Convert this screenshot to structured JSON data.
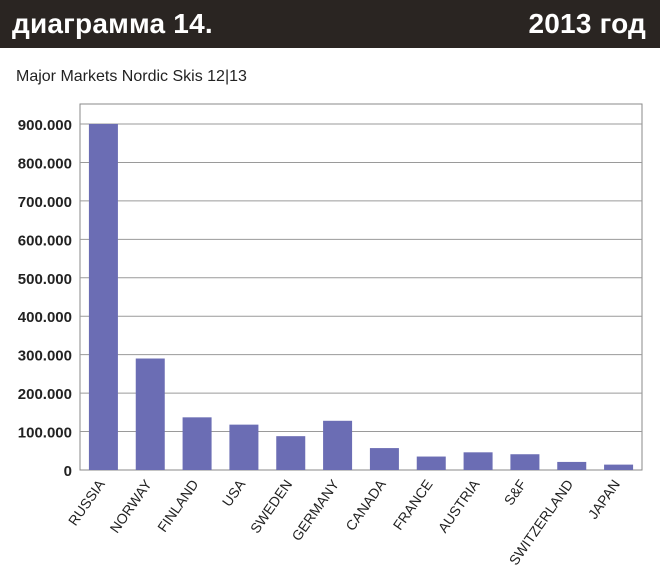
{
  "header": {
    "left_title": "диаграмма 14.",
    "right_title": "2013 год"
  },
  "chart_data": {
    "type": "bar",
    "title": "Major Markets Nordic Skis 12|13",
    "categories": [
      "RUSSIA",
      "NORWAY",
      "FINLAND",
      "USA",
      "SWEDEN",
      "GERMANY",
      "CANADA",
      "FRANCE",
      "AUSTRIA",
      "S&F",
      "SWITZERLAND",
      "JAPAN"
    ],
    "values": [
      900000,
      290000,
      137000,
      118000,
      88000,
      128000,
      57000,
      35000,
      46000,
      41000,
      21000,
      14000
    ],
    "ylim": [
      0,
      900000
    ],
    "yticks": [
      0,
      100000,
      200000,
      300000,
      400000,
      500000,
      600000,
      700000,
      800000,
      900000
    ],
    "ytick_labels": [
      "0",
      "100.000",
      "200.000",
      "300.000",
      "400.000",
      "500.000",
      "600.000",
      "700.000",
      "800.000",
      "900.000"
    ],
    "xlabel": "",
    "ylabel": "",
    "grid": true,
    "bar_color": "#6b6db4",
    "grid_color": "#9a9a9a"
  }
}
